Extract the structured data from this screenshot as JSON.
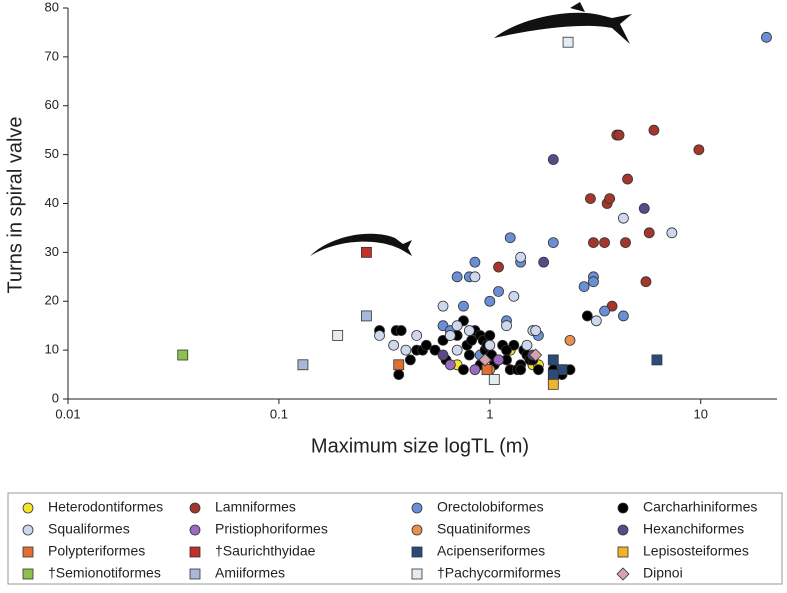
{
  "chart_data": {
    "type": "scatter",
    "x_label": "Maximum size logTL (m)",
    "y_label": "Turns in spiral valve",
    "xscale": "log",
    "xlim": [
      0.01,
      23
    ],
    "ylim": [
      0,
      80
    ],
    "xticks": [
      0.01,
      0.1,
      1,
      10
    ],
    "yticks": [
      0,
      10,
      20,
      30,
      40,
      50,
      60,
      70,
      80
    ],
    "series": [
      {
        "name": "Heterodontiformes",
        "color": "#f5e52a",
        "marker": "circle",
        "x": [
          0.7,
          1.25,
          1.6,
          1.7,
          1.1
        ],
        "y": [
          7,
          10,
          7,
          7,
          8
        ]
      },
      {
        "name": "Lamniformes",
        "color": "#a3372c",
        "marker": "circle",
        "x": [
          1.1,
          3,
          3.1,
          3.5,
          3.6,
          3.7,
          3.8,
          4,
          4.1,
          4.4,
          4.5,
          5.5,
          5.7,
          6,
          9.8
        ],
        "y": [
          27,
          41,
          32,
          32,
          40,
          41,
          19,
          54,
          54,
          32,
          45,
          24,
          34,
          55,
          51
        ]
      },
      {
        "name": "Orectolobiformes",
        "color": "#6a8fd6",
        "marker": "circle",
        "x": [
          0.7,
          0.8,
          0.85,
          1.25,
          1.4,
          2,
          0.6,
          0.75,
          1,
          1.1,
          2.8,
          3.1,
          3.1,
          3.5,
          4.3,
          1.7,
          0.9,
          20.5,
          0.65,
          1.2
        ],
        "y": [
          25,
          25,
          28,
          33,
          28,
          32,
          15,
          19,
          20,
          22,
          23,
          25,
          24,
          18,
          17,
          13,
          9,
          74,
          14,
          16
        ]
      },
      {
        "name": "Carcharhiniformes",
        "color": "#000000",
        "marker": "circle",
        "x": [
          0.3,
          0.36,
          0.38,
          0.37,
          0.42,
          0.45,
          0.48,
          0.5,
          0.55,
          0.6,
          0.62,
          0.65,
          0.7,
          0.75,
          0.78,
          0.8,
          0.82,
          0.85,
          0.9,
          0.93,
          0.95,
          0.97,
          1.0,
          1.02,
          1.05,
          1.1,
          1.15,
          1.2,
          1.25,
          1.3,
          1.35,
          1.4,
          1.45,
          1.5,
          1.55,
          1.6,
          1.7,
          2.0,
          2.2,
          2.4,
          2.9,
          0.75,
          0.9,
          1.4,
          1.2
        ],
        "y": [
          14,
          14,
          14,
          5,
          8,
          10,
          10,
          11,
          10,
          12,
          8,
          13,
          13,
          16,
          11,
          9,
          12,
          14,
          13,
          12,
          10,
          11,
          13,
          9,
          7,
          8,
          11,
          8,
          6,
          11,
          6,
          7,
          10,
          9,
          8,
          8,
          6,
          6,
          5,
          6,
          17,
          6,
          7,
          6,
          10
        ]
      },
      {
        "name": "Squaliformes",
        "color": "#cdd8ee",
        "marker": "circle",
        "x": [
          0.3,
          0.35,
          0.4,
          0.45,
          0.6,
          0.65,
          0.7,
          0.8,
          0.85,
          1.2,
          1.3,
          1.4,
          1.5,
          1.6,
          1.65,
          3.2,
          4.3,
          7.3,
          0.7,
          1.0
        ],
        "y": [
          13,
          11,
          10,
          13,
          19,
          13,
          15,
          14,
          25,
          15,
          21,
          29,
          11,
          14,
          14,
          16,
          37,
          34,
          10,
          11
        ]
      },
      {
        "name": "Pristiophoriformes",
        "color": "#9b6bbf",
        "marker": "circle",
        "x": [
          0.65,
          0.85,
          1.1
        ],
        "y": [
          7,
          6,
          8
        ]
      },
      {
        "name": "Squatiniformes",
        "color": "#e89052",
        "marker": "circle",
        "x": [
          1,
          2.4
        ],
        "y": [
          6,
          12
        ]
      },
      {
        "name": "Hexanchiformes",
        "color": "#5a4a8a",
        "marker": "circle",
        "x": [
          1.8,
          2,
          5.4,
          0.6,
          1.6
        ],
        "y": [
          28,
          49,
          39,
          9,
          9
        ]
      },
      {
        "name": "Polypteriformes",
        "color": "#e07030",
        "marker": "square",
        "x": [
          0.37,
          0.97
        ],
        "y": [
          7,
          6
        ]
      },
      {
        "name": "†Saurichthyidae",
        "color": "#c0312b",
        "marker": "square",
        "x": [
          0.26
        ],
        "y": [
          30
        ]
      },
      {
        "name": "Acipenseriformes",
        "color": "#2c4a7a",
        "marker": "square",
        "x": [
          2,
          2.2,
          6.2,
          2
        ],
        "y": [
          8,
          6,
          8,
          5
        ]
      },
      {
        "name": "Lepisosteiformes",
        "color": "#f0b428",
        "marker": "square",
        "x": [
          2
        ],
        "y": [
          3
        ]
      },
      {
        "name": "†Semionotiformes",
        "color": "#8dc04c",
        "marker": "square",
        "x": [
          0.035
        ],
        "y": [
          9
        ]
      },
      {
        "name": "Amiiformes",
        "color": "#a8b8d8",
        "marker": "square",
        "x": [
          0.13,
          0.26
        ],
        "y": [
          7,
          17
        ]
      },
      {
        "name": "†Pachycormiformes",
        "color": "#e3ebf3",
        "marker": "square",
        "x": [
          0.19,
          1.05,
          2.35
        ],
        "y": [
          13,
          4,
          73
        ]
      },
      {
        "name": "Dipnoi",
        "color": "#d4a3ab",
        "marker": "diamond",
        "x": [
          0.95,
          1.65
        ],
        "y": [
          8,
          9
        ]
      }
    ]
  }
}
